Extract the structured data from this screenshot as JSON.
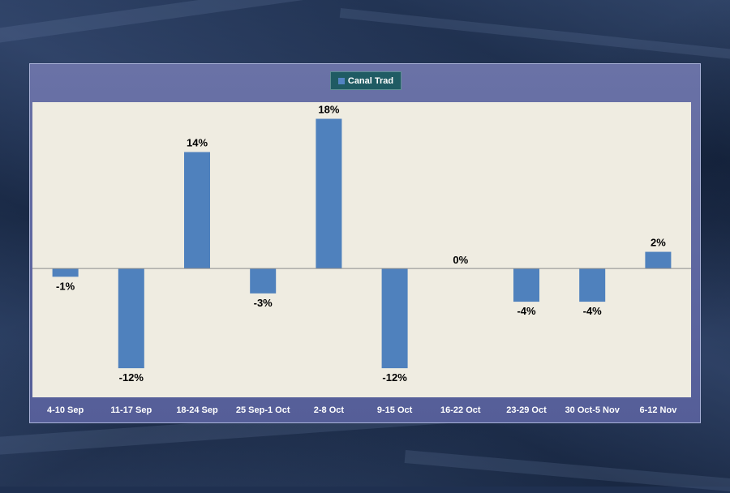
{
  "chart_data": {
    "type": "bar",
    "title": "",
    "legend": [
      "Canal Trad"
    ],
    "legend_position": "top-center",
    "categories": [
      "4-10 Sep",
      "11-17 Sep",
      "18-24 Sep",
      "25 Sep-1 Oct",
      "2-8 Oct",
      "9-15 Oct",
      "16-22 Oct",
      "23-29 Oct",
      "30 Oct-5 Nov",
      "6-12 Nov"
    ],
    "series": [
      {
        "name": "Canal Trad",
        "values": [
          -1,
          -12,
          14,
          -3,
          18,
          -12,
          0,
          -4,
          -4,
          2
        ]
      }
    ],
    "data_labels": [
      "-1%",
      "-12%",
      "14%",
      "-3%",
      "18%",
      "-12%",
      "0%",
      "-4%",
      "-4%",
      "2%"
    ],
    "ylim": [
      -15.5,
      20
    ],
    "grid": false,
    "colors": {
      "bar": "#4f81bd",
      "plot_bg": "#efece1",
      "panel_bg": "#636aa2",
      "legend_bg": "#1f5b63",
      "axis": "#8c8c8c"
    }
  }
}
